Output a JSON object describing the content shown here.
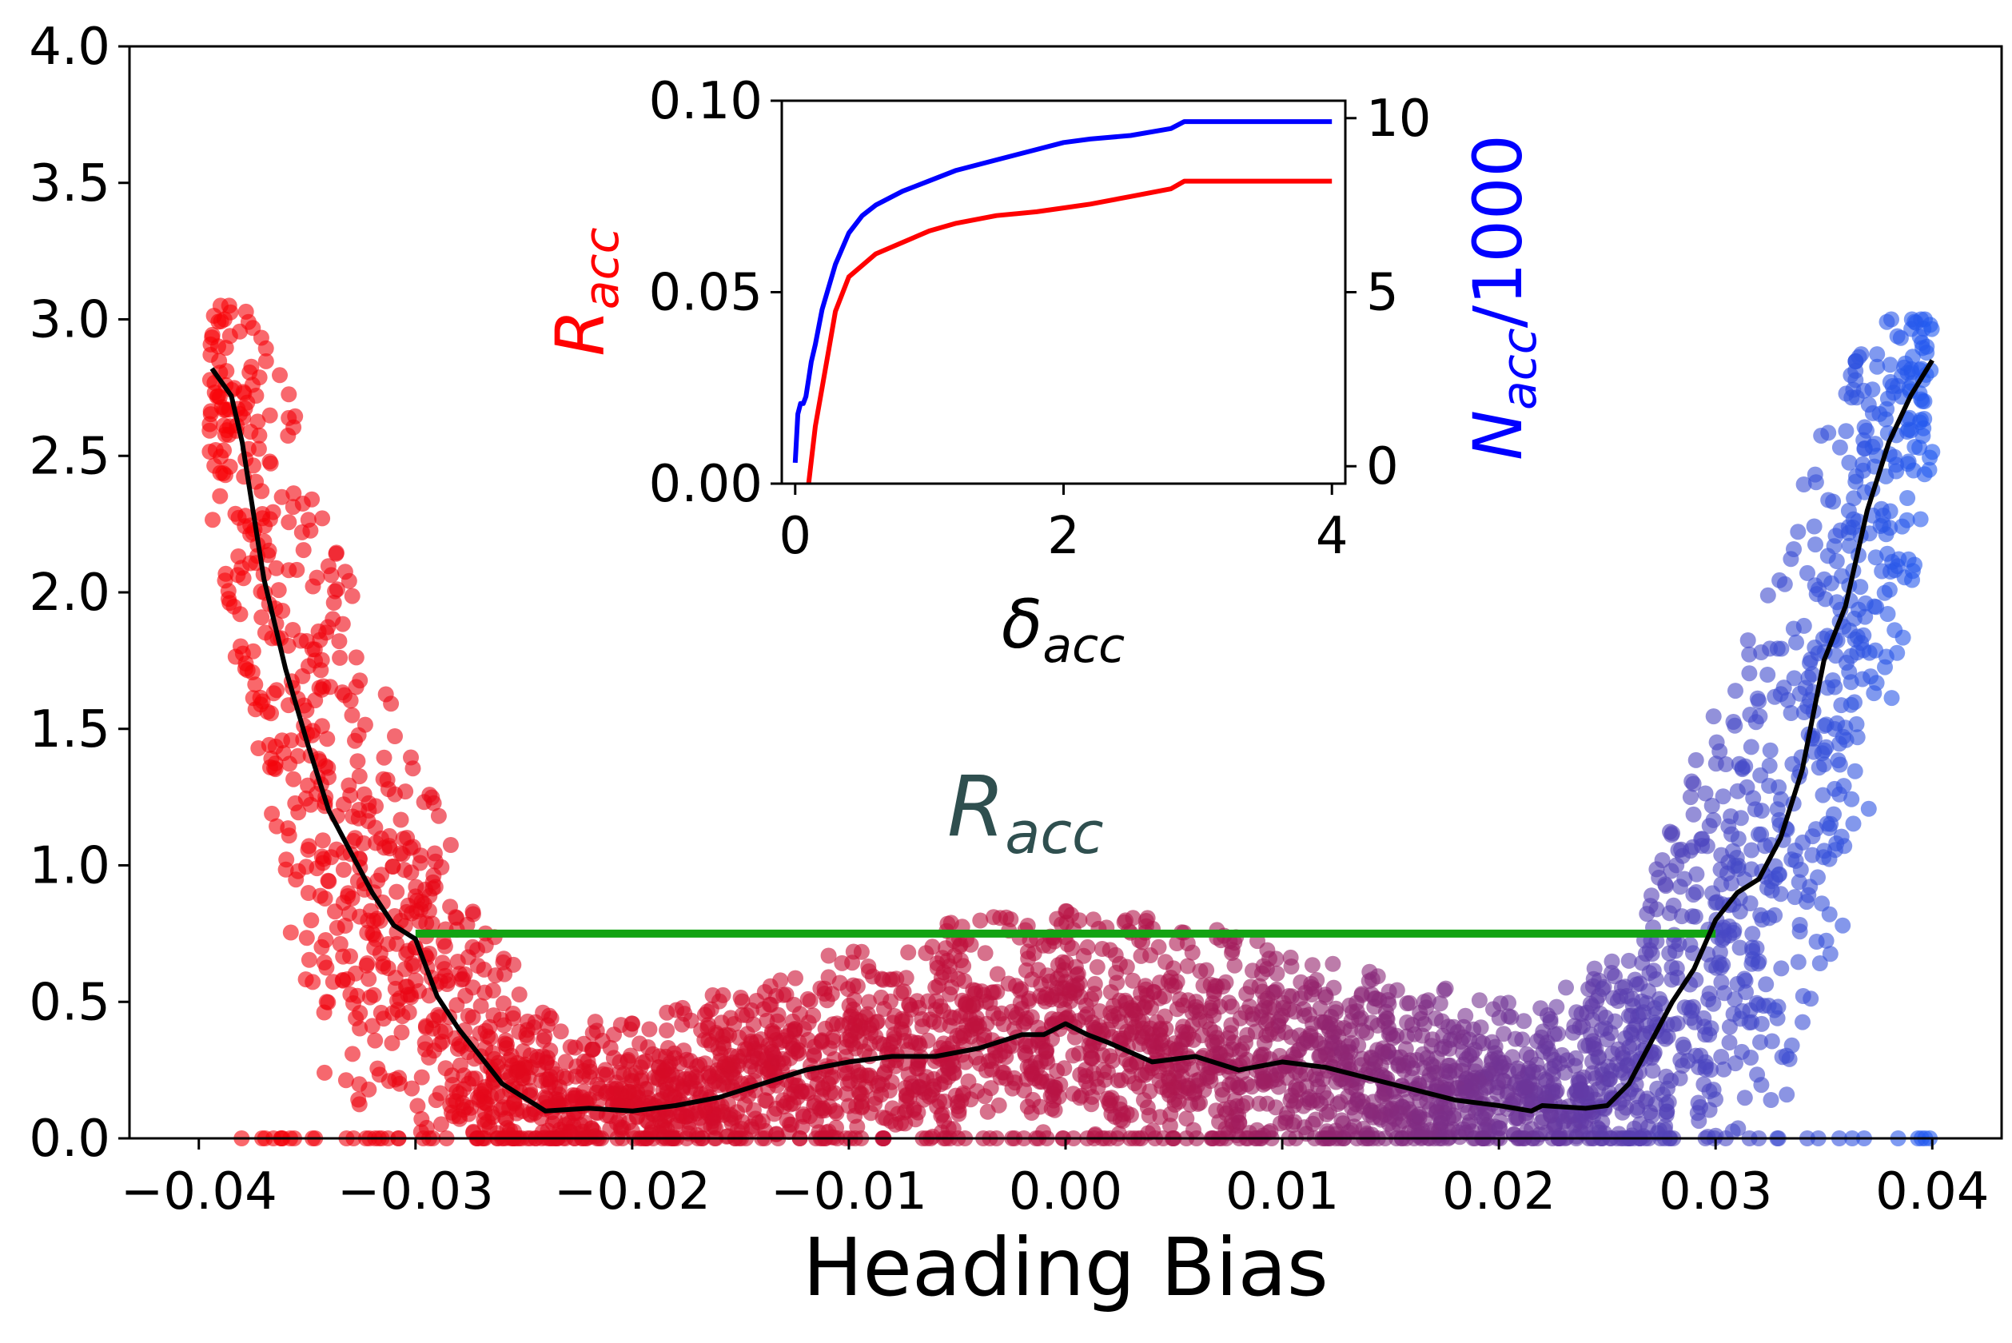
{
  "colors": {
    "scatter_left": "#ff0000",
    "scatter_right": "#1560ff",
    "mean_line": "#000000",
    "threshold_line": "#12a312",
    "annotation": "#2f4f4f",
    "inset_red": "#ff0000",
    "inset_blue": "#0000ff"
  },
  "chart_data": [
    {
      "type": "scatter",
      "xlabel": "Heading Bias",
      "ylabel": "",
      "xlim": [
        -0.0432,
        0.0432
      ],
      "ylim": [
        0,
        4.0
      ],
      "grid": false,
      "xticks": [
        -0.04,
        -0.03,
        -0.02,
        -0.01,
        0.0,
        0.01,
        0.02,
        0.03,
        0.04
      ],
      "xtick_labels": [
        "−0.04",
        "−0.03",
        "−0.02",
        "−0.01",
        "0.00",
        "0.01",
        "0.02",
        "0.03",
        "0.04"
      ],
      "yticks": [
        0.0,
        0.5,
        1.0,
        1.5,
        2.0,
        2.5,
        3.0,
        3.5,
        4.0
      ],
      "ytick_labels": [
        "0.0",
        "0.5",
        "1.0",
        "1.5",
        "2.0",
        "2.5",
        "3.0",
        "3.5",
        "4.0"
      ],
      "annotation": {
        "text": "R",
        "subscript": "acc",
        "x": -0.003,
        "y": 1.15
      },
      "threshold_line": {
        "x": [
          -0.03,
          0.03
        ],
        "y": 0.75
      },
      "mean_curve": {
        "x": [
          -0.0394,
          -0.0385,
          -0.038,
          -0.0375,
          -0.037,
          -0.036,
          -0.035,
          -0.034,
          -0.033,
          -0.032,
          -0.031,
          -0.03,
          -0.029,
          -0.028,
          -0.027,
          -0.026,
          -0.025,
          -0.024,
          -0.022,
          -0.02,
          -0.018,
          -0.016,
          -0.014,
          -0.012,
          -0.01,
          -0.008,
          -0.006,
          -0.004,
          -0.002,
          -0.001,
          0.0,
          0.001,
          0.002,
          0.004,
          0.006,
          0.008,
          0.01,
          0.012,
          0.014,
          0.016,
          0.018,
          0.02,
          0.0215,
          0.022,
          0.024,
          0.025,
          0.026,
          0.027,
          0.028,
          0.029,
          0.03,
          0.031,
          0.032,
          0.033,
          0.034,
          0.035,
          0.036,
          0.037,
          0.038,
          0.039,
          0.04
        ],
        "y": [
          2.82,
          2.72,
          2.55,
          2.3,
          2.05,
          1.72,
          1.45,
          1.2,
          1.05,
          0.9,
          0.78,
          0.73,
          0.52,
          0.4,
          0.3,
          0.2,
          0.15,
          0.1,
          0.11,
          0.1,
          0.12,
          0.15,
          0.2,
          0.25,
          0.28,
          0.3,
          0.3,
          0.33,
          0.38,
          0.38,
          0.42,
          0.38,
          0.35,
          0.28,
          0.3,
          0.25,
          0.28,
          0.26,
          0.22,
          0.18,
          0.14,
          0.12,
          0.1,
          0.12,
          0.11,
          0.12,
          0.2,
          0.35,
          0.5,
          0.62,
          0.8,
          0.9,
          0.95,
          1.1,
          1.35,
          1.75,
          1.95,
          2.3,
          2.55,
          2.72,
          2.85
        ]
      },
      "scatter_envelope": {
        "x": [
          -0.0395,
          -0.038,
          -0.036,
          -0.034,
          -0.032,
          -0.03,
          -0.028,
          -0.026,
          -0.024,
          -0.022,
          -0.02,
          -0.015,
          -0.01,
          -0.005,
          0.0,
          0.005,
          0.01,
          0.015,
          0.02,
          0.022,
          0.024,
          0.026,
          0.028,
          0.03,
          0.032,
          0.034,
          0.036,
          0.038,
          0.04
        ],
        "y_low": [
          2.3,
          1.5,
          0.8,
          0.3,
          0.0,
          0.0,
          0.0,
          0.0,
          0.0,
          0.0,
          0.0,
          0.0,
          0.05,
          0.08,
          0.1,
          0.08,
          0.05,
          0.0,
          0.0,
          0.0,
          0.0,
          0.0,
          0.0,
          0.0,
          0.0,
          0.3,
          0.8,
          1.5,
          2.4
        ],
        "y_high": [
          3.05,
          3.05,
          2.8,
          2.3,
          1.75,
          1.4,
          1.0,
          0.7,
          0.5,
          0.45,
          0.45,
          0.55,
          0.7,
          0.8,
          0.85,
          0.8,
          0.72,
          0.6,
          0.5,
          0.5,
          0.6,
          0.75,
          1.2,
          1.6,
          1.9,
          2.4,
          2.8,
          3.0,
          3.0
        ]
      }
    },
    {
      "type": "line",
      "xlabel": "δ",
      "xlabel_subscript": "acc",
      "ylabel": "R",
      "ylabel_subscript": "acc",
      "ylabel_right": "N",
      "ylabel_right_subscript": "acc",
      "ylabel_right_suffix": "/1000",
      "xlim": [
        -0.1,
        4.1
      ],
      "ylim": [
        0,
        0.1
      ],
      "y2lim": [
        -0.5,
        10.5
      ],
      "xticks": [
        0,
        2,
        4
      ],
      "xtick_labels": [
        "0",
        "2",
        "4"
      ],
      "yticks": [
        0.0,
        0.05,
        0.1
      ],
      "ytick_labels": [
        "0.00",
        "0.05",
        "0.10"
      ],
      "y2ticks": [
        0,
        5,
        10
      ],
      "y2tick_labels": [
        "0",
        "5",
        "10"
      ],
      "series": [
        {
          "axis": "left",
          "x": [
            0.1,
            0.15,
            0.2,
            0.25,
            0.3,
            0.4,
            0.5,
            0.6,
            0.8,
            1.0,
            1.2,
            1.5,
            1.8,
            2.0,
            2.2,
            2.5,
            2.8,
            2.9,
            3.0,
            3.5,
            4.0
          ],
          "y": [
            0.0,
            0.015,
            0.025,
            0.035,
            0.045,
            0.054,
            0.057,
            0.06,
            0.063,
            0.066,
            0.068,
            0.07,
            0.071,
            0.072,
            0.073,
            0.075,
            0.077,
            0.079,
            0.079,
            0.079,
            0.079
          ]
        },
        {
          "axis": "right",
          "x": [
            0.0,
            0.02,
            0.04,
            0.06,
            0.08,
            0.1,
            0.12,
            0.15,
            0.2,
            0.3,
            0.4,
            0.5,
            0.6,
            0.8,
            1.0,
            1.2,
            1.5,
            1.8,
            2.0,
            2.2,
            2.5,
            2.8,
            2.9,
            3.0,
            3.5,
            4.0
          ],
          "y": [
            0.1,
            1.5,
            1.8,
            1.8,
            2.0,
            2.5,
            3.0,
            3.5,
            4.5,
            5.8,
            6.7,
            7.2,
            7.5,
            7.9,
            8.2,
            8.5,
            8.8,
            9.1,
            9.3,
            9.4,
            9.5,
            9.7,
            9.9,
            9.9,
            9.9,
            9.9
          ]
        }
      ]
    }
  ]
}
